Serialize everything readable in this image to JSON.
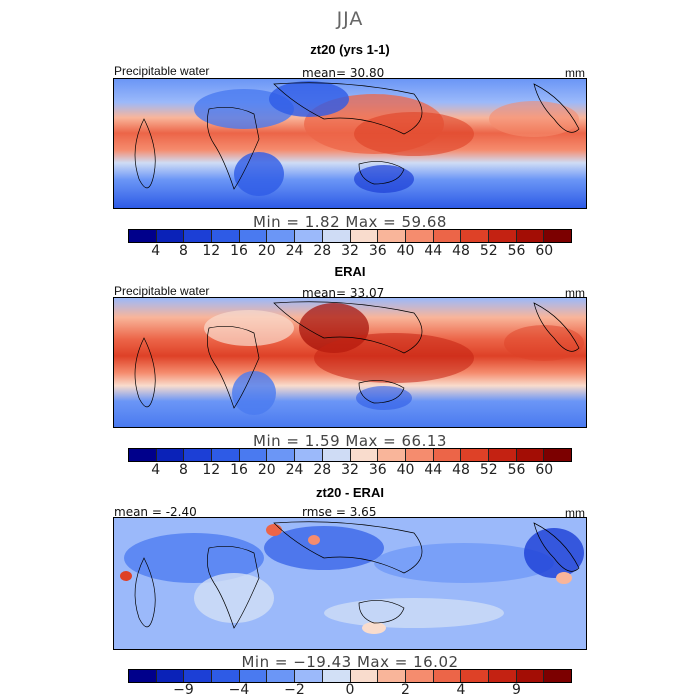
{
  "season": "JJA",
  "palettes": {
    "precip": [
      "#00008b",
      "#0a22b8",
      "#1c3fd6",
      "#2e5be6",
      "#4a7af0",
      "#6b96f6",
      "#9bb9fa",
      "#cfdcf5",
      "#f9dccd",
      "#f9b59a",
      "#f58c6e",
      "#ec6548",
      "#de4127",
      "#c42212",
      "#a30d05",
      "#7c0000"
    ],
    "diff": [
      "#00008b",
      "#0a22b8",
      "#1c3fd6",
      "#2e5be6",
      "#4a7af0",
      "#6b96f6",
      "#9bb9fa",
      "#d2e0f6",
      "#f9dccd",
      "#f9b59a",
      "#f58c6e",
      "#ec6548",
      "#de4127",
      "#c42212",
      "#a30d05",
      "#7c0000"
    ]
  },
  "panels": [
    {
      "title": "zt20 (yrs 1-1)",
      "left_label": "Precipitable water",
      "center_label": "mean=  30.80",
      "right_label": "mm",
      "minmax": "Min =    1.82 Max =  59.68",
      "ticks": [
        "4",
        "8",
        "12",
        "16",
        "20",
        "24",
        "28",
        "32",
        "36",
        "40",
        "44",
        "48",
        "52",
        "56",
        "60"
      ]
    },
    {
      "title": "ERAI",
      "left_label": "Precipitable water",
      "center_label": "mean=  33.07",
      "right_label": "mm",
      "minmax": "Min =    1.59 Max =  66.13",
      "ticks": [
        "4",
        "8",
        "12",
        "16",
        "20",
        "24",
        "28",
        "32",
        "36",
        "40",
        "44",
        "48",
        "52",
        "56",
        "60"
      ]
    },
    {
      "title": "zt20 - ERAI",
      "left_label": "mean =  -2.40",
      "center_label": "rmse =    3.65",
      "right_label": "mm",
      "minmax": "Min = −19.43 Max =  16.02",
      "ticks": [
        "−9",
        "−4",
        "−2",
        "0",
        "2",
        "4",
        "9"
      ]
    }
  ],
  "chart_data": [
    {
      "type": "heatmap",
      "title": "zt20 (yrs 1-1)",
      "variable": "Precipitable water",
      "units": "mm",
      "mean": 30.8,
      "min": 1.82,
      "max": 59.68,
      "colorbar_levels": [
        4,
        8,
        12,
        16,
        20,
        24,
        28,
        32,
        36,
        40,
        44,
        48,
        52,
        56,
        60
      ]
    },
    {
      "type": "heatmap",
      "title": "ERAI",
      "variable": "Precipitable water",
      "units": "mm",
      "mean": 33.07,
      "min": 1.59,
      "max": 66.13,
      "colorbar_levels": [
        4,
        8,
        12,
        16,
        20,
        24,
        28,
        32,
        36,
        40,
        44,
        48,
        52,
        56,
        60
      ]
    },
    {
      "type": "heatmap",
      "title": "zt20 - ERAI",
      "units": "mm",
      "mean": -2.4,
      "rmse": 3.65,
      "min": -19.43,
      "max": 16.02,
      "colorbar_tick_labels": [
        -9,
        -4,
        -2,
        0,
        2,
        4,
        9
      ]
    }
  ]
}
